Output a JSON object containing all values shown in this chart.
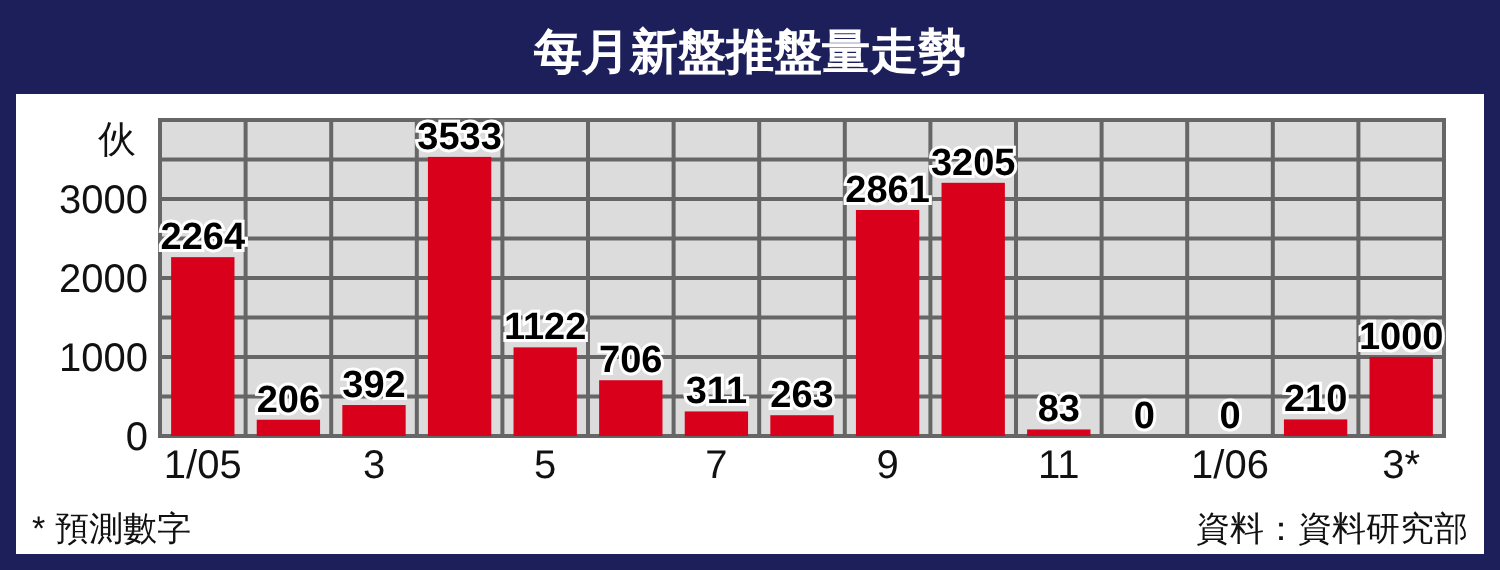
{
  "chart_data": {
    "type": "bar",
    "title": "每月新盤推盤量走勢",
    "ylabel": "伙",
    "categories": [
      "1/05",
      null,
      "3",
      null,
      "5",
      null,
      "7",
      null,
      "9",
      null,
      "11",
      null,
      "1/06",
      null,
      "3*"
    ],
    "values": [
      2264,
      206,
      392,
      3533,
      1122,
      706,
      311,
      263,
      2861,
      3205,
      83,
      0,
      0,
      210,
      1000
    ],
    "color": "#d9001b",
    "data_labels": true,
    "ylim": [
      0,
      4000
    ],
    "yticks": [
      0,
      {
        "value": 500,
        "label": null
      },
      1000,
      {
        "value": 1500,
        "label": null
      },
      2000,
      {
        "value": 2500,
        "label": null
      },
      3000,
      {
        "value": 3500,
        "label": null
      }
    ],
    "grid": true,
    "annotations": [
      "* 預測數字",
      "資料：資料研究部"
    ]
  }
}
